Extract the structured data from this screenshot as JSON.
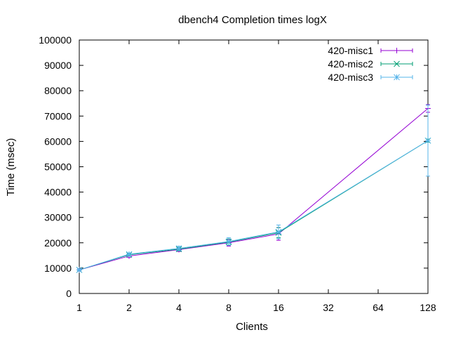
{
  "chart_data": {
    "type": "line",
    "title": "dbench4 Completion times logX",
    "xlabel": "Clients",
    "ylabel": "Time (msec)",
    "x_scale": "log2",
    "xlim": [
      1,
      128
    ],
    "ylim": [
      0,
      100000
    ],
    "x_ticks": [
      1,
      2,
      4,
      8,
      16,
      32,
      64,
      128
    ],
    "y_ticks": [
      0,
      10000,
      20000,
      30000,
      40000,
      50000,
      60000,
      70000,
      80000,
      90000,
      100000
    ],
    "grid": false,
    "legend_position": "top-right",
    "error_bars": true,
    "series": [
      {
        "name": "420-misc1",
        "color": "#9400d3",
        "marker": "plus",
        "x": [
          1,
          2,
          4,
          8,
          16,
          128
        ],
        "y": [
          9300,
          14800,
          17300,
          20000,
          23500,
          73000
        ],
        "err": [
          500,
          600,
          700,
          1300,
          2500,
          1500
        ]
      },
      {
        "name": "420-misc2",
        "color": "#009e73",
        "marker": "cross",
        "x": [
          1,
          2,
          4,
          8,
          16,
          128
        ],
        "y": [
          9300,
          15300,
          17500,
          20300,
          24000,
          60300
        ],
        "err": [
          400,
          500,
          700,
          1200,
          2000,
          600
        ]
      },
      {
        "name": "420-misc3",
        "color": "#56b4e9",
        "marker": "star",
        "x": [
          1,
          2,
          4,
          8,
          16,
          128
        ],
        "y": [
          9300,
          15500,
          17800,
          20500,
          24300,
          60300
        ],
        "err": [
          400,
          500,
          800,
          1500,
          2700,
          14000
        ]
      }
    ]
  }
}
